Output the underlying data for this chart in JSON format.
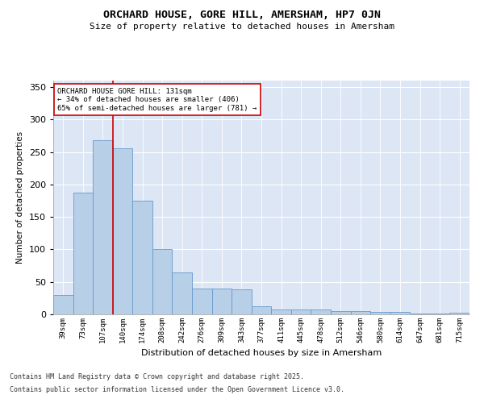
{
  "title": "ORCHARD HOUSE, GORE HILL, AMERSHAM, HP7 0JN",
  "subtitle": "Size of property relative to detached houses in Amersham",
  "xlabel": "Distribution of detached houses by size in Amersham",
  "ylabel": "Number of detached properties",
  "bar_color": "#b8cfe8",
  "bar_edge_color": "#6699cc",
  "background_color": "#dce6f5",
  "categories": [
    "39sqm",
    "73sqm",
    "107sqm",
    "140sqm",
    "174sqm",
    "208sqm",
    "242sqm",
    "276sqm",
    "309sqm",
    "343sqm",
    "377sqm",
    "411sqm",
    "445sqm",
    "478sqm",
    "512sqm",
    "546sqm",
    "580sqm",
    "614sqm",
    "647sqm",
    "681sqm",
    "715sqm"
  ],
  "values": [
    30,
    187,
    268,
    256,
    175,
    100,
    65,
    40,
    40,
    38,
    12,
    8,
    7,
    7,
    5,
    5,
    4,
    4,
    1,
    1,
    2
  ],
  "ylim": [
    0,
    360
  ],
  "yticks": [
    0,
    50,
    100,
    150,
    200,
    250,
    300,
    350
  ],
  "vline_x_index": 2.5,
  "annotation_text": "ORCHARD HOUSE GORE HILL: 131sqm\n← 34% of detached houses are smaller (406)\n65% of semi-detached houses are larger (781) →",
  "annotation_box_color": "#ffffff",
  "annotation_box_edge_color": "#cc0000",
  "vline_color": "#cc0000",
  "footnote1": "Contains HM Land Registry data © Crown copyright and database right 2025.",
  "footnote2": "Contains public sector information licensed under the Open Government Licence v3.0."
}
